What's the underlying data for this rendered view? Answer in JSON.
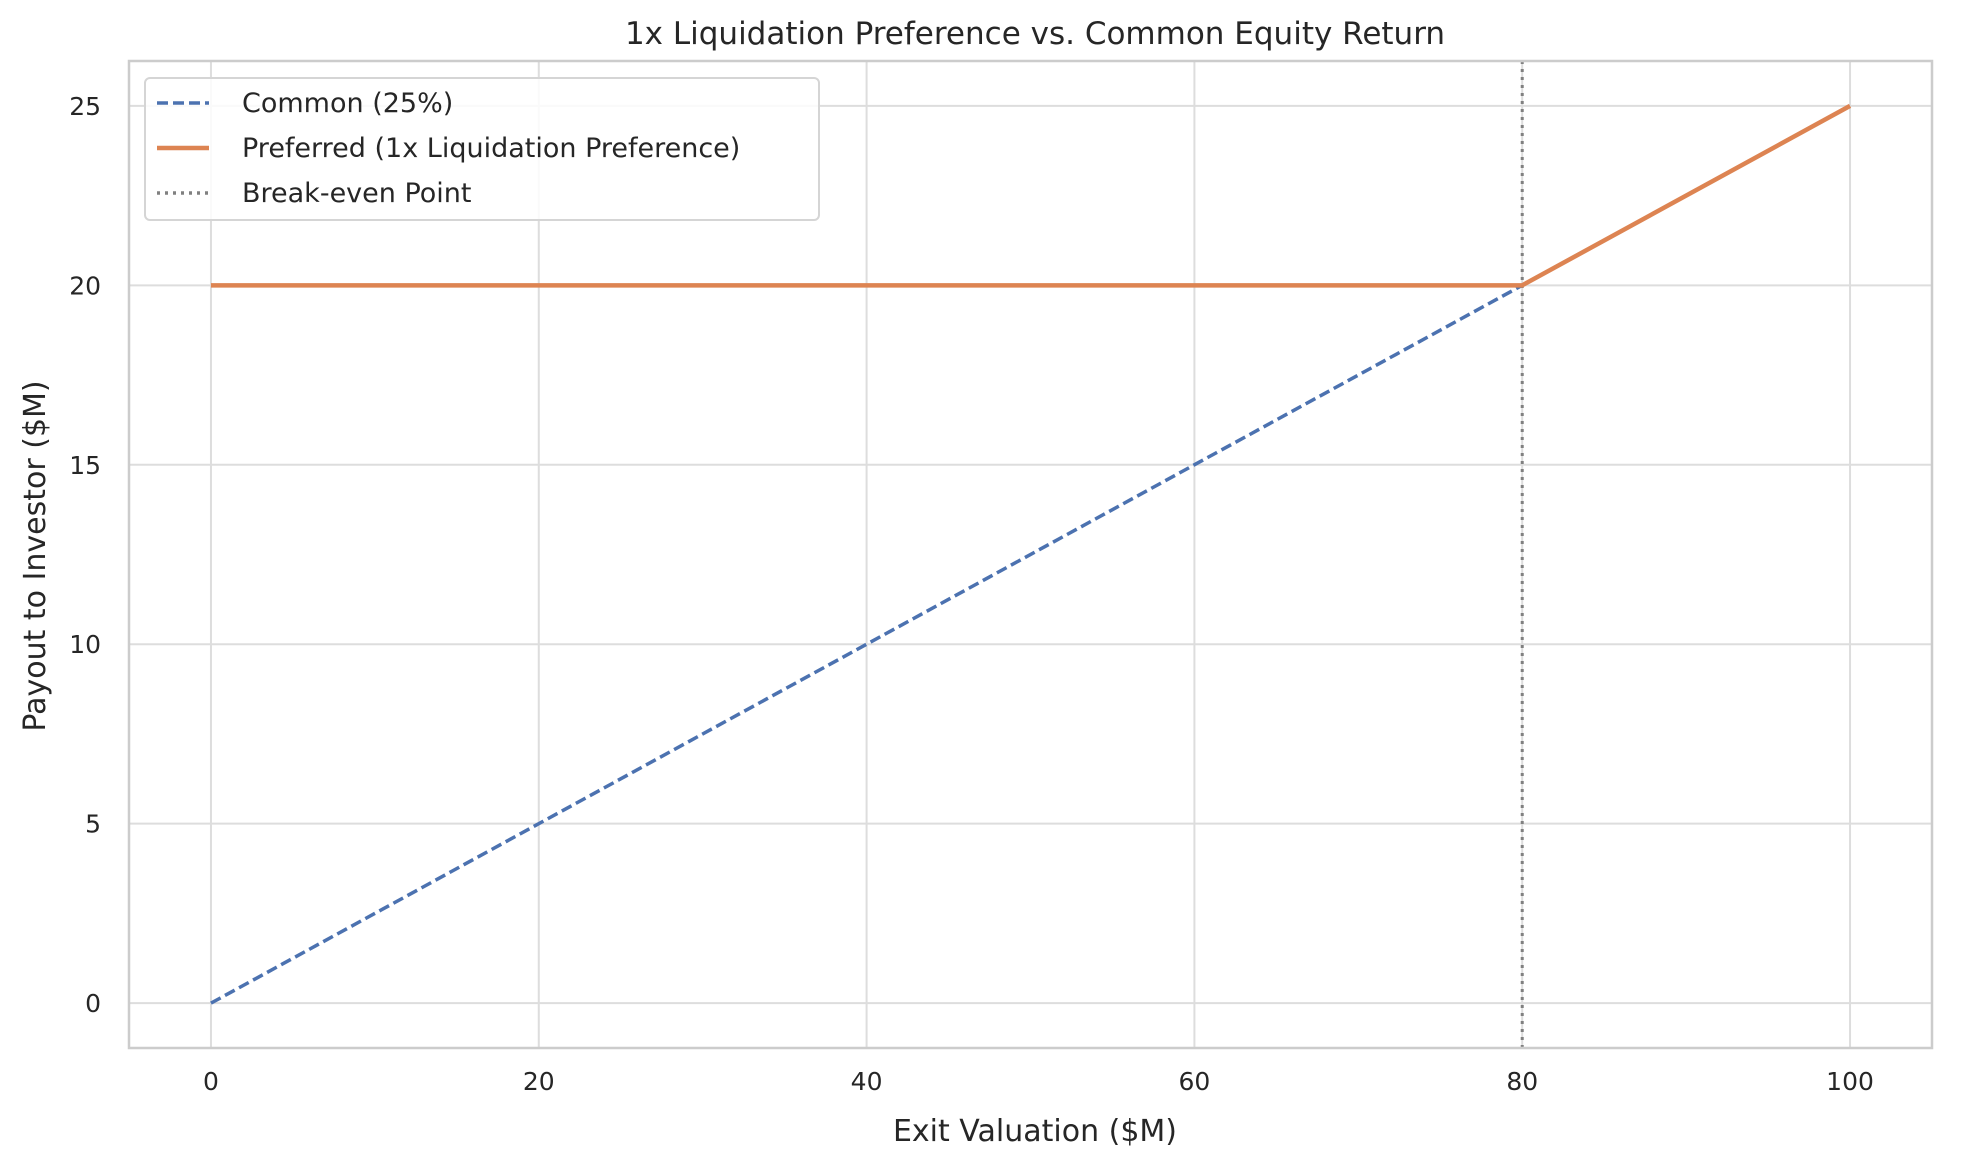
{
  "chart_data": {
    "type": "line",
    "title": "1x Liquidation Preference vs. Common Equity Return",
    "xlabel": "Exit Valuation ($M)",
    "ylabel": "Payout to Investor ($M)",
    "xlim": [
      -5,
      105
    ],
    "ylim": [
      -1.25,
      26.25
    ],
    "xticks": [
      0,
      20,
      40,
      60,
      80,
      100
    ],
    "yticks": [
      0,
      5,
      10,
      15,
      20,
      25
    ],
    "grid": true,
    "legend_position": "top-left",
    "series": [
      {
        "name": "Common (25%)",
        "style": "dashed",
        "color": "#4c72b0",
        "x": [
          0,
          100
        ],
        "y": [
          0,
          25
        ]
      },
      {
        "name": "Preferred (1x Liquidation Preference)",
        "style": "solid",
        "color": "#dd8452",
        "x": [
          0,
          80,
          100
        ],
        "y": [
          20,
          20,
          25
        ]
      }
    ],
    "reference_lines": [
      {
        "name": "Break-even Point",
        "orientation": "vertical",
        "x": 80,
        "style": "dotted",
        "color": "#808080"
      }
    ]
  }
}
